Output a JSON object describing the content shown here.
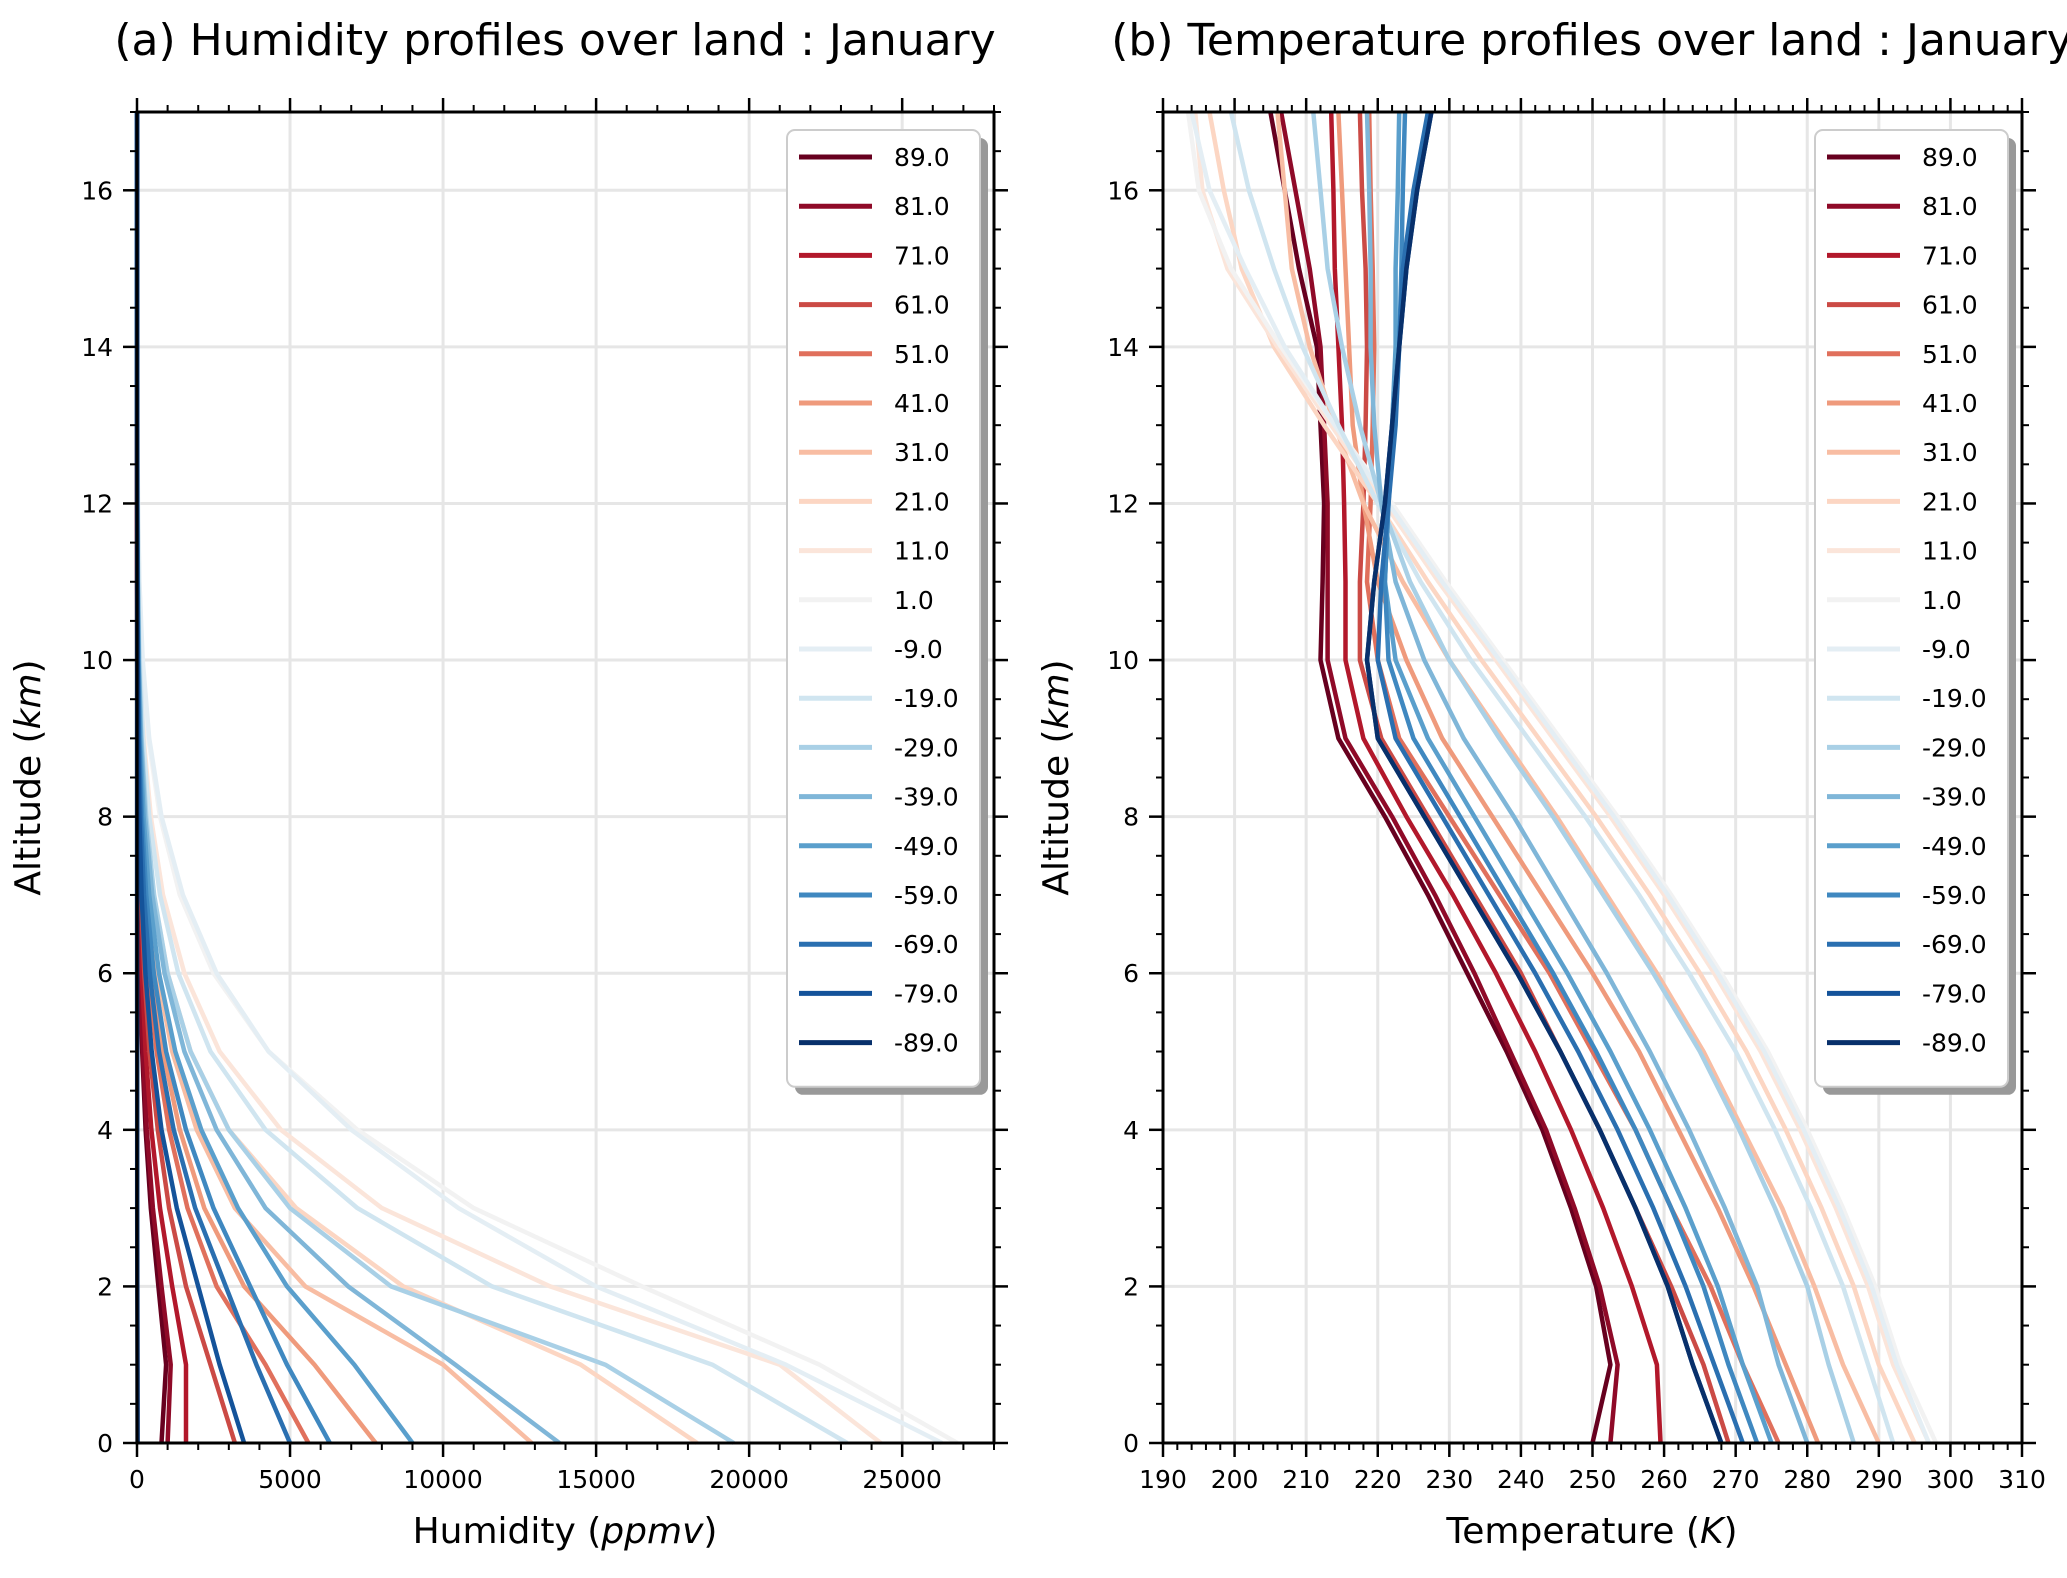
{
  "chart_data": [
    {
      "type": "line",
      "title": "(a) Humidity profiles over land : January",
      "xlabel": "Humidity",
      "xlabel_unit": "ppmv",
      "ylabel": "Altitude",
      "ylabel_unit": "km",
      "xlim": [
        0,
        28000
      ],
      "ylim": [
        0,
        17
      ],
      "x_ticks": [
        0,
        5000,
        10000,
        15000,
        20000,
        25000
      ],
      "x_tick_labels": [
        "0",
        "5000",
        "10000",
        "15000",
        "20000",
        "25000"
      ],
      "y_ticks": [
        0,
        2,
        4,
        6,
        8,
        10,
        12,
        14,
        16
      ],
      "y_tick_labels": [
        "0",
        "2",
        "4",
        "6",
        "8",
        "10",
        "12",
        "14",
        "16"
      ],
      "grid": true,
      "legend_position": "top-right",
      "y": [
        0,
        1,
        2,
        3,
        4,
        5,
        6,
        7,
        8,
        9,
        10,
        11,
        12,
        13,
        14,
        15,
        16,
        17
      ],
      "series": [
        {
          "name": "89.0",
          "color": "#67001f",
          "values": [
            800,
            950,
            700,
            450,
            280,
            170,
            100,
            55,
            30,
            15,
            8,
            4,
            3,
            3,
            3,
            3,
            3,
            3
          ]
        },
        {
          "name": "81.0",
          "color": "#8f0a28",
          "values": [
            1000,
            1100,
            800,
            520,
            320,
            190,
            110,
            60,
            33,
            17,
            9,
            5,
            3,
            3,
            3,
            3,
            3,
            3
          ]
        },
        {
          "name": "71.0",
          "color": "#b2182b",
          "values": [
            1600,
            1600,
            1150,
            750,
            470,
            280,
            160,
            90,
            48,
            24,
            12,
            6,
            4,
            3,
            3,
            3,
            3,
            3
          ]
        },
        {
          "name": "61.0",
          "color": "#cb4a45",
          "values": [
            3200,
            2400,
            1600,
            1050,
            680,
            410,
            240,
            130,
            70,
            35,
            17,
            8,
            5,
            3,
            3,
            3,
            3,
            3
          ]
        },
        {
          "name": "51.0",
          "color": "#e0705c",
          "values": [
            5600,
            4200,
            2600,
            1650,
            1050,
            640,
            370,
            200,
            105,
            52,
            25,
            12,
            6,
            4,
            3,
            3,
            3,
            3
          ]
        },
        {
          "name": "41.0",
          "color": "#ef9a7c",
          "values": [
            7800,
            5800,
            3500,
            2200,
            1400,
            850,
            490,
            270,
            140,
            70,
            33,
            15,
            7,
            4,
            3,
            3,
            3,
            3
          ]
        },
        {
          "name": "31.0",
          "color": "#f8bda3",
          "values": [
            12900,
            10000,
            5500,
            3200,
            1950,
            1150,
            660,
            360,
            190,
            95,
            45,
            20,
            9,
            5,
            4,
            3,
            3,
            3
          ]
        },
        {
          "name": "21.0",
          "color": "#fcd6c3",
          "values": [
            18300,
            14500,
            8700,
            5200,
            3000,
            1750,
            1000,
            550,
            290,
            145,
            68,
            30,
            13,
            6,
            4,
            3,
            3,
            3
          ]
        },
        {
          "name": "11.0",
          "color": "#fbe5da",
          "values": [
            24300,
            21000,
            13500,
            8000,
            4700,
            2700,
            1550,
            850,
            450,
            220,
            100,
            45,
            18,
            8,
            5,
            3,
            3,
            3
          ]
        },
        {
          "name": "1.0",
          "color": "#f2f2f2",
          "values": [
            26800,
            22300,
            16500,
            11000,
            7200,
            4300,
            2500,
            1400,
            750,
            370,
            170,
            75,
            30,
            12,
            6,
            4,
            3,
            3
          ]
        },
        {
          "name": "-9.0",
          "color": "#e4eef4",
          "values": [
            26300,
            21200,
            15000,
            10500,
            7000,
            4300,
            2600,
            1500,
            800,
            400,
            185,
            80,
            32,
            13,
            6,
            4,
            3,
            3
          ]
        },
        {
          "name": "-19.0",
          "color": "#d0e5f0",
          "values": [
            23200,
            18800,
            11600,
            7200,
            4200,
            2400,
            1350,
            750,
            400,
            200,
            95,
            42,
            17,
            8,
            4,
            3,
            3,
            3
          ]
        },
        {
          "name": "-29.0",
          "color": "#a9d0e6",
          "values": [
            19500,
            15300,
            8300,
            5000,
            3000,
            1750,
            1000,
            560,
            300,
            150,
            70,
            31,
            13,
            6,
            4,
            3,
            3,
            3
          ]
        },
        {
          "name": "-39.0",
          "color": "#7fb6d8",
          "values": [
            13800,
            10400,
            6900,
            4200,
            2600,
            1550,
            900,
            500,
            265,
            133,
            62,
            28,
            12,
            6,
            4,
            3,
            3,
            3
          ]
        },
        {
          "name": "-49.0",
          "color": "#5a9fcc",
          "values": [
            9000,
            7100,
            4900,
            3300,
            2100,
            1250,
            720,
            400,
            212,
            106,
            50,
            22,
            10,
            5,
            3,
            3,
            3,
            3
          ]
        },
        {
          "name": "-59.0",
          "color": "#3f88c0",
          "values": [
            6300,
            4900,
            3700,
            2500,
            1600,
            950,
            550,
            300,
            160,
            80,
            38,
            17,
            8,
            4,
            3,
            3,
            3,
            3
          ]
        },
        {
          "name": "-69.0",
          "color": "#2a6fb0",
          "values": [
            5000,
            3900,
            2900,
            1900,
            1200,
            720,
            415,
            230,
            122,
            61,
            29,
            13,
            6,
            4,
            3,
            3,
            3,
            3
          ]
        },
        {
          "name": "-79.0",
          "color": "#14539a",
          "values": [
            3500,
            2700,
            2000,
            1300,
            800,
            480,
            275,
            150,
            80,
            40,
            19,
            9,
            5,
            3,
            3,
            3,
            3,
            3
          ]
        },
        {
          "name": "-89.0",
          "color": "#08306b",
          "values": [
            20,
            15,
            10,
            8,
            6,
            5,
            4,
            3,
            3,
            3,
            3,
            3,
            3,
            3,
            3,
            3,
            3,
            3
          ]
        }
      ]
    },
    {
      "type": "line",
      "title": "(b) Temperature profiles over land : January",
      "xlabel": "Temperature",
      "xlabel_unit": "K",
      "ylabel": "Altitude",
      "ylabel_unit": "km",
      "xlim": [
        190,
        310
      ],
      "ylim": [
        0,
        17
      ],
      "x_ticks": [
        190,
        200,
        210,
        220,
        230,
        240,
        250,
        260,
        270,
        280,
        290,
        300,
        310
      ],
      "x_tick_labels": [
        "190",
        "200",
        "210",
        "220",
        "230",
        "240",
        "250",
        "260",
        "270",
        "280",
        "290",
        "300",
        "310"
      ],
      "y_ticks": [
        0,
        2,
        4,
        6,
        8,
        10,
        12,
        14,
        16
      ],
      "y_tick_labels": [
        "0",
        "2",
        "4",
        "6",
        "8",
        "10",
        "12",
        "14",
        "16"
      ],
      "grid": true,
      "legend_position": "top-right",
      "y": [
        0,
        1,
        2,
        3,
        4,
        5,
        6,
        7,
        8,
        9,
        10,
        11,
        12,
        13,
        14,
        15,
        16,
        17
      ],
      "series": [
        {
          "name": "89.0",
          "color": "#67001f",
          "values": [
            250.0,
            252.5,
            250.5,
            247.0,
            243.0,
            238.0,
            232.5,
            227.0,
            221.0,
            214.5,
            212.0,
            212.3,
            212.5,
            212.0,
            211.5,
            209.0,
            207.0,
            205.0
          ]
        },
        {
          "name": "81.0",
          "color": "#8f0a28",
          "values": [
            252.5,
            253.5,
            251.0,
            247.5,
            243.5,
            238.5,
            233.5,
            228.0,
            222.0,
            215.5,
            213.0,
            213.0,
            213.0,
            212.5,
            212.0,
            210.5,
            208.5,
            206.5
          ]
        },
        {
          "name": "71.0",
          "color": "#b2182b",
          "values": [
            259.5,
            259.0,
            255.5,
            251.5,
            247.0,
            242.0,
            236.5,
            230.5,
            224.0,
            218.0,
            215.5,
            215.5,
            215.3,
            215.0,
            214.5,
            214.0,
            213.8,
            213.5
          ]
        },
        {
          "name": "61.0",
          "color": "#cb4a45",
          "values": [
            269.0,
            265.5,
            261.0,
            256.0,
            251.0,
            245.5,
            240.0,
            233.5,
            227.0,
            220.5,
            217.5,
            217.5,
            218.0,
            218.3,
            218.5,
            218.3,
            217.8,
            217.5
          ]
        },
        {
          "name": "51.0",
          "color": "#e0705c",
          "values": [
            276.0,
            271.0,
            266.5,
            261.0,
            256.0,
            250.0,
            244.0,
            237.0,
            230.0,
            223.0,
            220.0,
            218.5,
            219.0,
            219.3,
            219.5,
            219.3,
            219.0,
            218.8
          ]
        },
        {
          "name": "41.0",
          "color": "#ef9a7c",
          "values": [
            281.5,
            277.0,
            272.5,
            267.5,
            262.0,
            256.5,
            250.0,
            243.0,
            236.0,
            229.0,
            224.0,
            220.0,
            218.0,
            216.5,
            216.0,
            215.5,
            215.0,
            214.5
          ]
        },
        {
          "name": "31.0",
          "color": "#f8bda3",
          "values": [
            290.0,
            285.0,
            281.0,
            276.5,
            271.0,
            265.5,
            259.0,
            252.0,
            245.0,
            237.5,
            230.0,
            223.5,
            218.0,
            214.0,
            210.5,
            208.0,
            207.0,
            206.0
          ]
        },
        {
          "name": "21.0",
          "color": "#fcd6c3",
          "values": [
            295.0,
            290.0,
            286.5,
            282.0,
            277.0,
            271.5,
            265.0,
            258.0,
            250.5,
            242.5,
            234.5,
            227.0,
            220.0,
            212.5,
            205.5,
            201.0,
            198.5,
            196.5
          ]
        },
        {
          "name": "11.0",
          "color": "#fbe5da",
          "values": [
            297.0,
            292.0,
            288.5,
            284.0,
            279.0,
            273.5,
            267.0,
            260.0,
            252.5,
            244.5,
            236.5,
            228.5,
            221.0,
            213.5,
            206.0,
            199.0,
            195.5,
            194.5
          ]
        },
        {
          "name": "1.0",
          "color": "#f2f2f2",
          "values": [
            298.0,
            293.0,
            289.5,
            285.0,
            280.0,
            274.5,
            268.0,
            261.0,
            253.5,
            245.5,
            237.5,
            229.5,
            222.0,
            214.0,
            206.5,
            199.5,
            195.0,
            193.5
          ]
        },
        {
          "name": "-9.0",
          "color": "#e4eef4",
          "values": [
            297.0,
            292.5,
            289.0,
            284.5,
            279.5,
            274.0,
            267.5,
            260.5,
            253.0,
            245.0,
            237.0,
            229.0,
            221.5,
            214.0,
            207.0,
            201.5,
            196.5,
            194.0
          ]
        },
        {
          "name": "-19.0",
          "color": "#d0e5f0",
          "values": [
            292.0,
            288.5,
            285.0,
            280.5,
            275.5,
            270.0,
            263.5,
            256.5,
            249.0,
            241.0,
            233.0,
            226.0,
            220.0,
            214.5,
            209.5,
            205.5,
            202.0,
            199.5
          ]
        },
        {
          "name": "-29.0",
          "color": "#a9d0e6",
          "values": [
            286.5,
            283.0,
            280.0,
            275.5,
            270.5,
            265.0,
            258.5,
            251.5,
            244.5,
            237.0,
            230.0,
            224.5,
            220.5,
            217.5,
            215.0,
            213.0,
            212.0,
            211.0
          ]
        },
        {
          "name": "-39.0",
          "color": "#7fb6d8",
          "values": [
            280.0,
            276.0,
            273.0,
            268.5,
            263.5,
            258.0,
            252.0,
            245.5,
            239.0,
            232.0,
            226.5,
            222.5,
            220.5,
            219.5,
            219.0,
            219.0,
            218.8,
            218.5
          ]
        },
        {
          "name": "-49.0",
          "color": "#5a9fcc",
          "values": [
            275.0,
            271.0,
            267.5,
            263.0,
            258.0,
            252.5,
            246.5,
            240.0,
            233.5,
            227.0,
            222.5,
            221.0,
            221.5,
            222.0,
            222.5,
            222.5,
            222.8,
            223.0
          ]
        },
        {
          "name": "-59.0",
          "color": "#3f88c0",
          "values": [
            273.0,
            269.0,
            265.5,
            261.0,
            256.0,
            250.5,
            244.5,
            238.0,
            231.5,
            225.0,
            221.5,
            221.0,
            221.5,
            222.3,
            223.0,
            223.3,
            223.5,
            223.8
          ]
        },
        {
          "name": "-69.0",
          "color": "#2a6fb0",
          "values": [
            271.0,
            267.0,
            263.0,
            258.5,
            253.5,
            248.0,
            242.0,
            235.5,
            229.0,
            222.5,
            220.0,
            220.5,
            221.5,
            222.5,
            223.0,
            223.5,
            225.0,
            227.0
          ]
        },
        {
          "name": "-79.0",
          "color": "#14539a",
          "values": [
            268.0,
            264.0,
            260.5,
            256.0,
            251.0,
            245.5,
            239.5,
            233.0,
            226.5,
            220.0,
            218.5,
            219.5,
            221.0,
            222.0,
            223.0,
            224.0,
            225.5,
            227.5
          ]
        },
        {
          "name": "-89.0",
          "color": "#08306b",
          "values": [
            268.0,
            264.0,
            260.5,
            256.0,
            251.0,
            245.5,
            239.5,
            233.0,
            226.5,
            220.0,
            218.5,
            219.5,
            221.0,
            222.0,
            223.0,
            224.0,
            225.5,
            227.5
          ]
        }
      ]
    }
  ]
}
